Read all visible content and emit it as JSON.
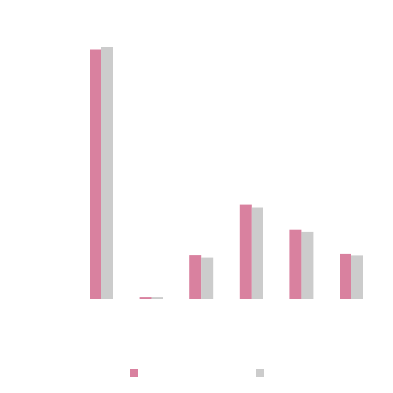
{
  "chart_data": {
    "type": "bar",
    "categories": [
      "",
      "",
      "",
      "",
      "",
      ""
    ],
    "series": [
      {
        "values": [
          100,
          0.6,
          17.3,
          37.6,
          27.8,
          18.0
        ],
        "color": "#d9819f"
      },
      {
        "values": [
          100.8,
          0.6,
          16.5,
          36.7,
          26.8,
          17.2
        ],
        "color": "#cccccc"
      }
    ],
    "ylim": [
      0,
      102
    ],
    "grid": false,
    "legend": "bottom"
  }
}
